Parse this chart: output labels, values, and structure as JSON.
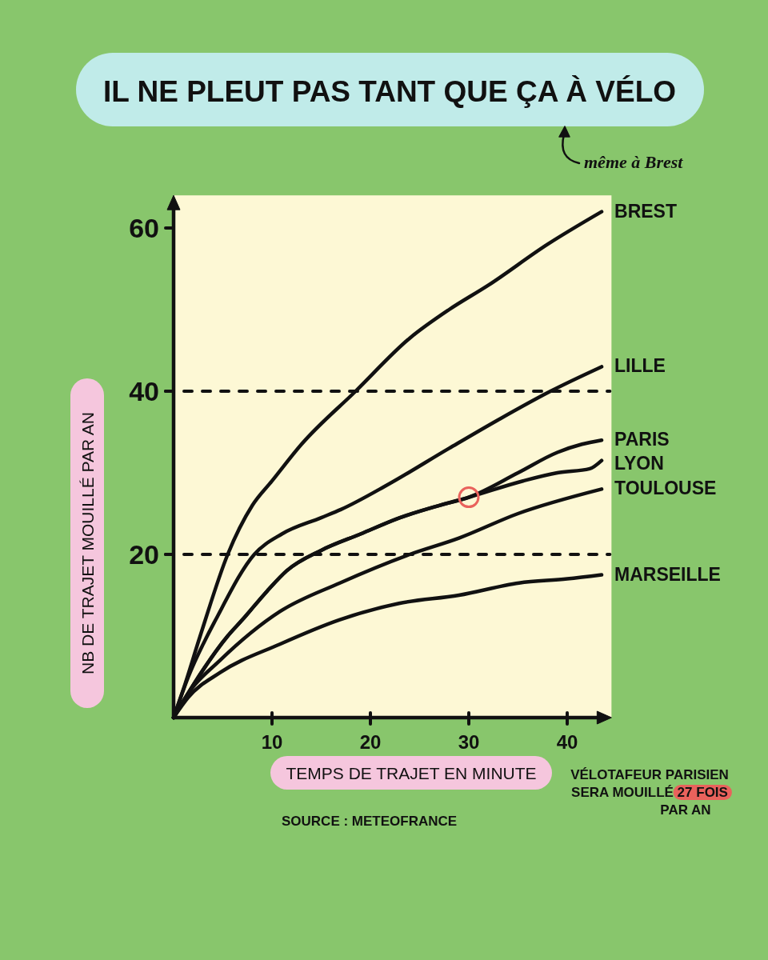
{
  "chart_data": {
    "type": "line",
    "title": "IL NE PLEUT PAS TANT QUE ÇA À VÉLO",
    "xlabel": "TEMPS DE TRAJET EN MINUTE",
    "ylabel": "NB DE TRAJET MOUILLÉ PAR AN",
    "xlim": [
      0,
      44.5
    ],
    "xticks": [
      10,
      20,
      30,
      40
    ],
    "ylim": [
      0,
      64
    ],
    "yticks": [
      20,
      40,
      60
    ],
    "ref_lines": [
      {
        "axis": "y",
        "value": 20,
        "line_style": "dashed"
      },
      {
        "axis": "y",
        "value": 40,
        "line_style": "dashed"
      }
    ],
    "series": [
      {
        "name": "BREST",
        "color": "#111111",
        "x": [
          0,
          1,
          2.7,
          5.5,
          8,
          10,
          13,
          18.5,
          24,
          28,
          32,
          38,
          43.5
        ],
        "values": [
          0,
          3.5,
          10,
          20,
          26,
          29,
          33.5,
          40,
          46.5,
          50,
          53,
          58,
          62
        ]
      },
      {
        "name": "LILLE",
        "color": "#111111",
        "x": [
          0,
          1.5,
          4.5,
          8.2,
          11,
          15,
          17,
          21.7,
          28,
          33,
          38.3,
          43.5
        ],
        "values": [
          0,
          5,
          12.5,
          20,
          22.5,
          24.5,
          25.5,
          28.5,
          33,
          36.5,
          40,
          43
        ]
      },
      {
        "name": "PARIS",
        "color": "#111111",
        "x": [
          0,
          2,
          5.5,
          7,
          9.5,
          11.5,
          15,
          19,
          23,
          27,
          30,
          35,
          39,
          41.5,
          43.5
        ],
        "values": [
          0,
          4,
          10,
          12,
          15.5,
          18,
          20.5,
          22.5,
          24.5,
          26,
          27,
          30,
          32.5,
          33.5,
          34
        ]
      },
      {
        "name": "LYON",
        "color": "#111111",
        "x": [
          0,
          2,
          5.5,
          7,
          9.5,
          11.5,
          15,
          19,
          23,
          27,
          30,
          35.5,
          39,
          42.3,
          43.5
        ],
        "values": [
          0,
          4,
          10,
          12,
          15.5,
          18,
          20.5,
          22.5,
          24.5,
          26,
          27,
          29,
          30,
          30.5,
          31.5
        ]
      },
      {
        "name": "TOULOUSE",
        "color": "#111111",
        "x": [
          0,
          1.5,
          4.7,
          10.8,
          16.9,
          24,
          29,
          35,
          43.5
        ],
        "values": [
          0,
          3,
          7,
          13,
          16.5,
          20,
          22,
          25,
          28
        ]
      },
      {
        "name": "MARSEILLE",
        "color": "#111111",
        "x": [
          0,
          1.5,
          4.7,
          10.8,
          16.9,
          22.9,
          29,
          35.1,
          40,
          43.5
        ],
        "values": [
          0,
          2.5,
          5.5,
          9,
          12,
          14,
          15,
          16.5,
          17,
          17.5
        ]
      },
      {
        "type": "scatter",
        "color": "#e9625c",
        "marker": "circle",
        "x": [
          30
        ],
        "values": [
          27
        ]
      }
    ],
    "annotations": [
      "même à Brest",
      "VÉLOTAFEUR PARISIEN SERA MOUILLÉ 27 FOIS PAR AN",
      "SOURCE : METEOFRANCE"
    ]
  }
}
